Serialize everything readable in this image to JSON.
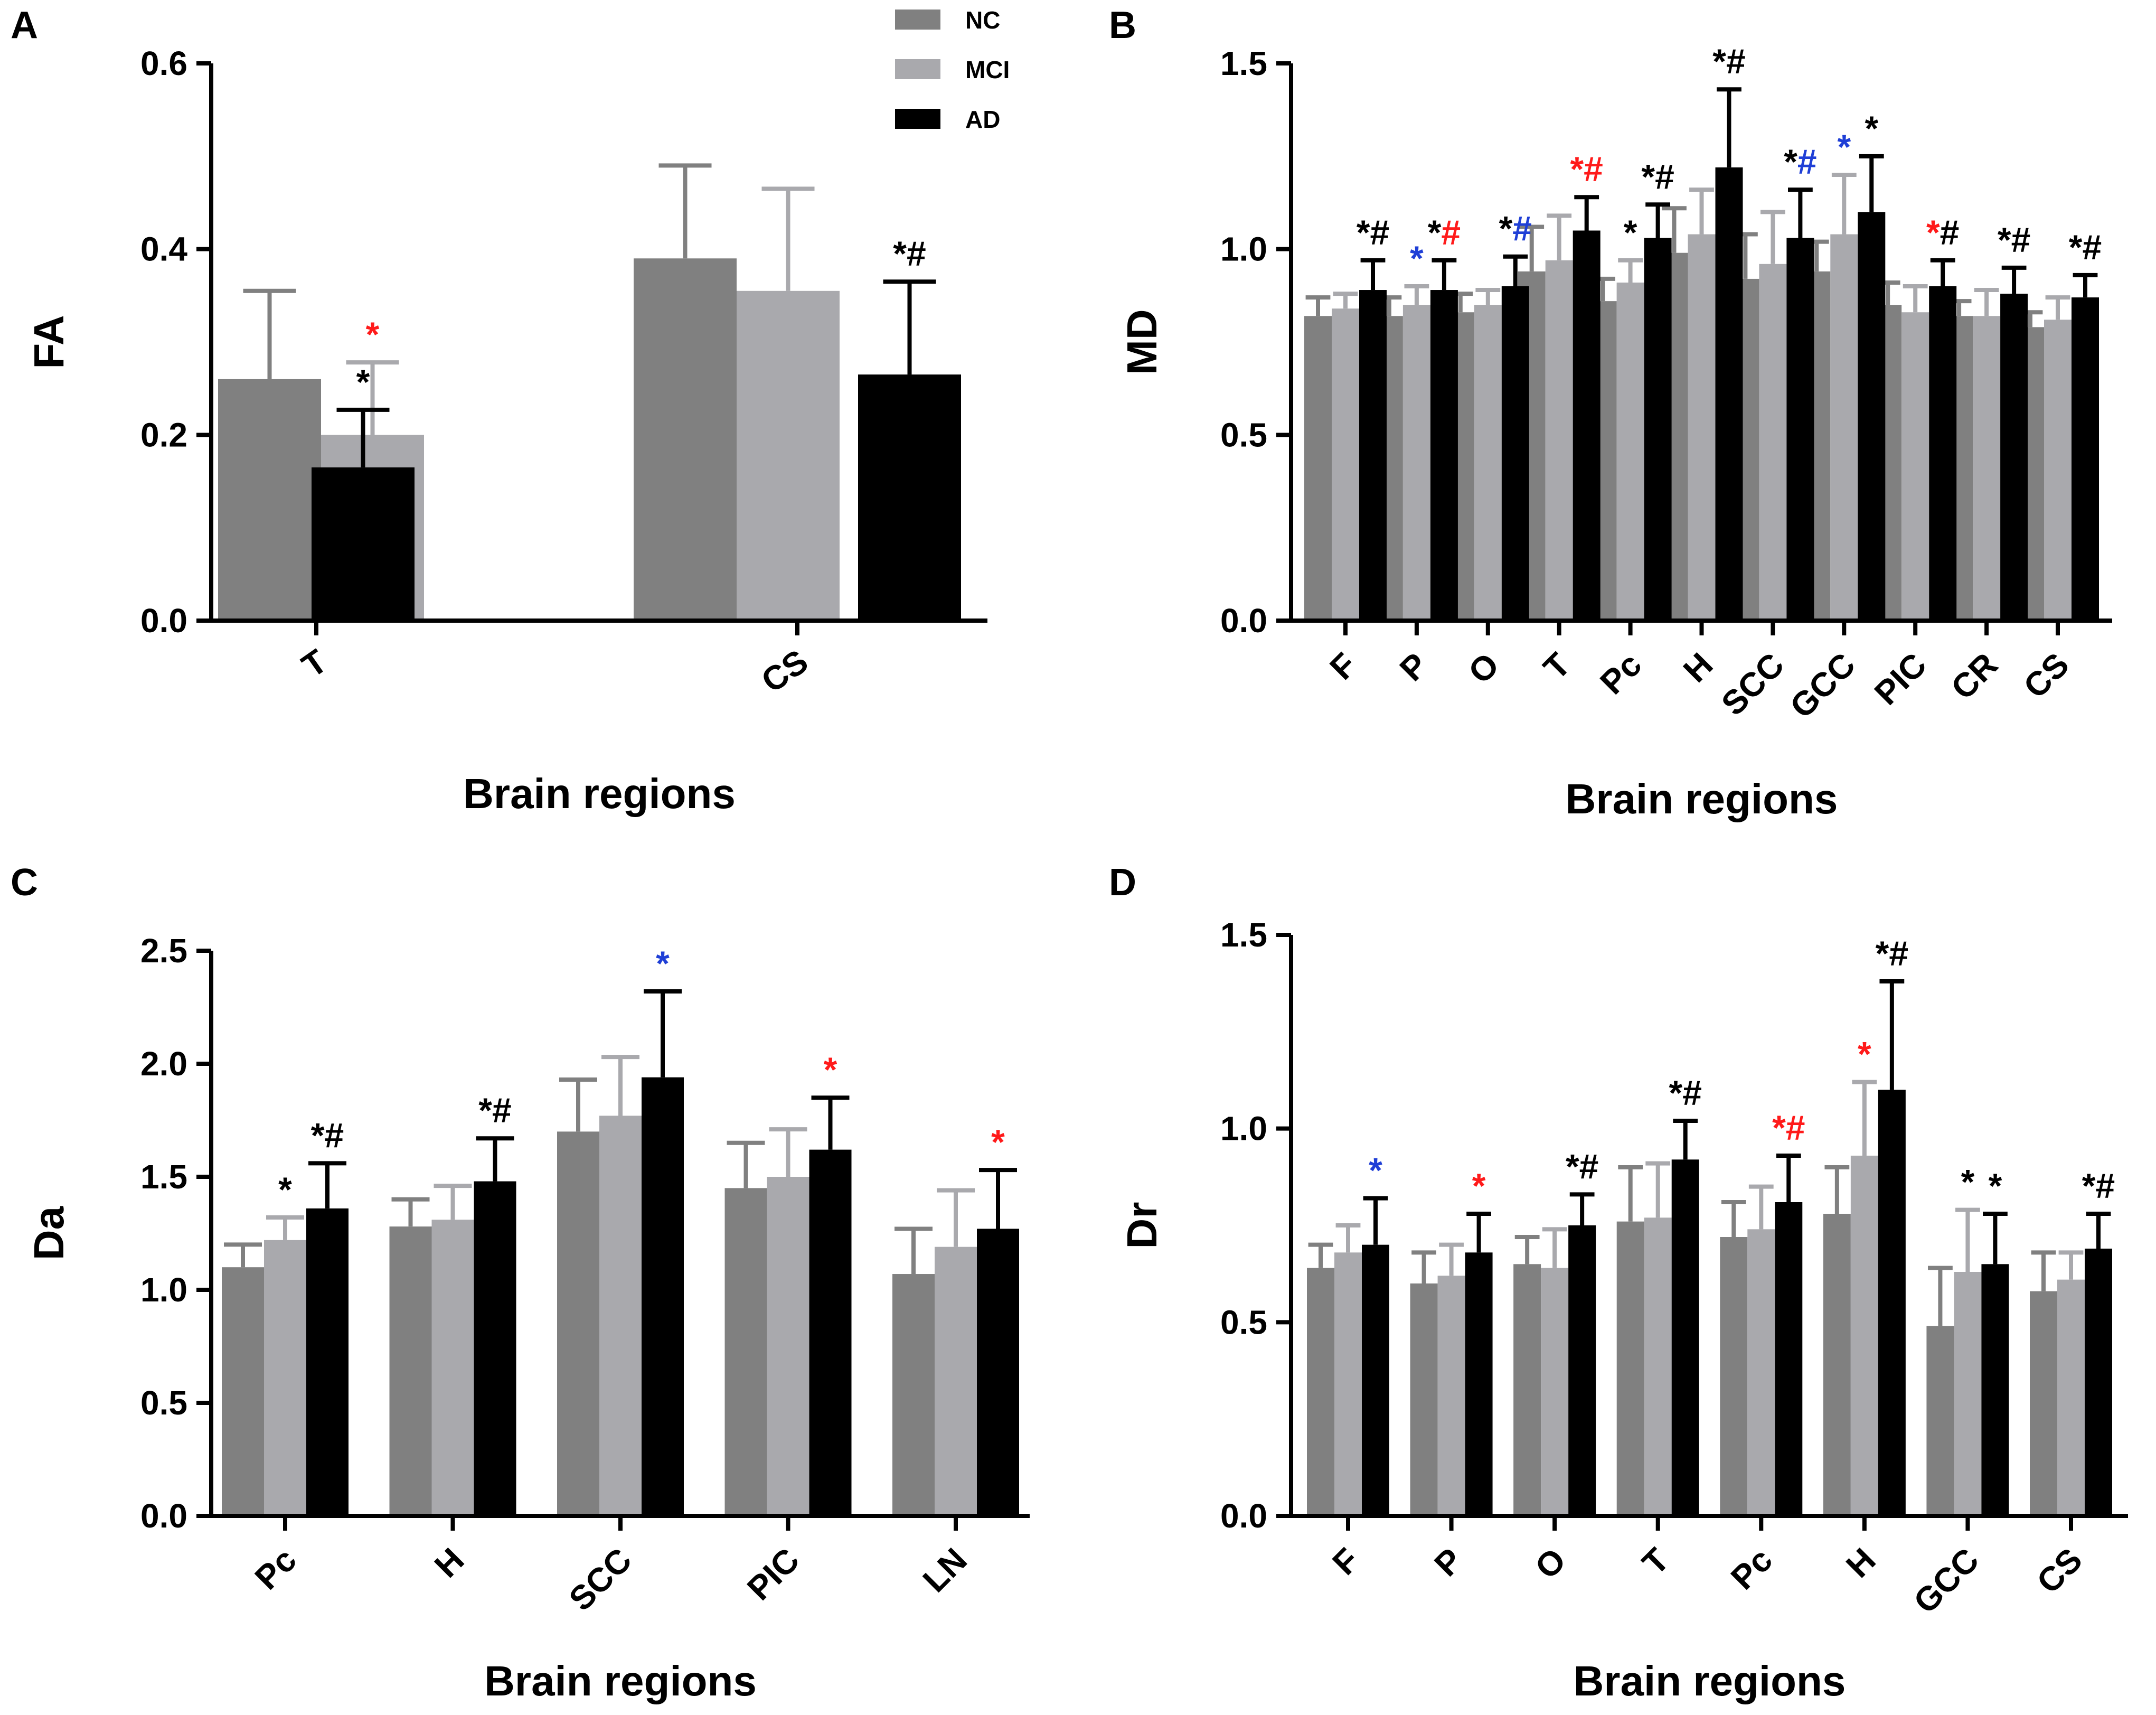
{
  "legend": [
    {
      "label": "NC",
      "color": "#808080"
    },
    {
      "label": "MCI",
      "color": "#a9a9ad"
    },
    {
      "label": "AD",
      "color": "#000000"
    }
  ],
  "sig_colors": {
    "k": "#000000",
    "r": "#ff1a1a",
    "b": "#1f3fd6"
  },
  "chart_data": [
    {
      "panel": "A",
      "type": "bar",
      "title": "",
      "xlabel": "Brain regions",
      "ylabel": "FA",
      "ylim": [
        0,
        0.6
      ],
      "yticks": [
        "0.0",
        "0.2",
        "0.4",
        "0.6"
      ],
      "categories": [
        "T",
        "CS"
      ],
      "series": [
        {
          "name": "NC",
          "values": [
            0.26,
            0.39
          ],
          "errors": [
            0.095,
            0.1
          ]
        },
        {
          "name": "MCI",
          "values": [
            0.2,
            0.355
          ],
          "errors": [
            0.078,
            0.11
          ]
        },
        {
          "name": "AD",
          "values": [
            0.165,
            0.265
          ],
          "errors": [
            0.062,
            0.1
          ]
        }
      ],
      "annotations": [
        {
          "category": 0,
          "series": 1,
          "marks": [
            {
              "t": "*",
              "c": "r"
            }
          ]
        },
        {
          "category": 0,
          "series": 2,
          "marks": [
            {
              "t": "*",
              "c": "k"
            }
          ]
        },
        {
          "category": 1,
          "series": 2,
          "marks": [
            {
              "t": "*#",
              "c": "k"
            }
          ]
        }
      ]
    },
    {
      "panel": "B",
      "type": "bar",
      "title": "",
      "xlabel": "Brain regions",
      "ylabel": "MD",
      "ylim": [
        0,
        1.5
      ],
      "yticks": [
        "0.0",
        "0.5",
        "1.0",
        "1.5"
      ],
      "categories": [
        "F",
        "P",
        "O",
        "T",
        "Pc",
        "H",
        "SCC",
        "GCC",
        "PIC",
        "CR",
        "CS"
      ],
      "series": [
        {
          "name": "NC",
          "values": [
            0.82,
            0.82,
            0.83,
            0.94,
            0.86,
            0.99,
            0.92,
            0.94,
            0.85,
            0.82,
            0.79
          ],
          "errors": [
            0.05,
            0.05,
            0.05,
            0.12,
            0.06,
            0.12,
            0.12,
            0.08,
            0.06,
            0.04,
            0.04
          ]
        },
        {
          "name": "MCI",
          "values": [
            0.84,
            0.85,
            0.85,
            0.97,
            0.91,
            1.04,
            0.96,
            1.04,
            0.83,
            0.82,
            0.81
          ],
          "errors": [
            0.04,
            0.05,
            0.04,
            0.12,
            0.06,
            0.12,
            0.14,
            0.16,
            0.07,
            0.07,
            0.06
          ]
        },
        {
          "name": "AD",
          "values": [
            0.89,
            0.89,
            0.9,
            1.05,
            1.03,
            1.22,
            1.03,
            1.1,
            0.9,
            0.88,
            0.87
          ],
          "errors": [
            0.08,
            0.08,
            0.08,
            0.09,
            0.09,
            0.21,
            0.13,
            0.15,
            0.07,
            0.07,
            0.06
          ]
        }
      ],
      "annotations": [
        {
          "category": 0,
          "series": 2,
          "marks": [
            {
              "t": "*#",
              "c": "k"
            }
          ]
        },
        {
          "category": 1,
          "series": 1,
          "marks": [
            {
              "t": "*",
              "c": "b"
            }
          ]
        },
        {
          "category": 1,
          "series": 2,
          "marks": [
            {
              "t": "*",
              "c": "k"
            },
            {
              "t": "#",
              "c": "r"
            }
          ]
        },
        {
          "category": 2,
          "series": 2,
          "marks": [
            {
              "t": "*",
              "c": "k"
            },
            {
              "t": "#",
              "c": "b"
            }
          ]
        },
        {
          "category": 3,
          "series": 2,
          "marks": [
            {
              "t": "*#",
              "c": "r"
            }
          ]
        },
        {
          "category": 4,
          "series": 1,
          "marks": [
            {
              "t": "*",
              "c": "k"
            }
          ]
        },
        {
          "category": 4,
          "series": 2,
          "marks": [
            {
              "t": "*#",
              "c": "k"
            }
          ]
        },
        {
          "category": 5,
          "series": 2,
          "marks": [
            {
              "t": "*#",
              "c": "k"
            }
          ]
        },
        {
          "category": 6,
          "series": 2,
          "marks": [
            {
              "t": "*",
              "c": "k"
            },
            {
              "t": "#",
              "c": "b"
            }
          ]
        },
        {
          "category": 7,
          "series": 1,
          "marks": [
            {
              "t": "*",
              "c": "b"
            }
          ]
        },
        {
          "category": 7,
          "series": 2,
          "marks": [
            {
              "t": "*",
              "c": "k"
            }
          ]
        },
        {
          "category": 8,
          "series": 2,
          "marks": [
            {
              "t": "*",
              "c": "r"
            },
            {
              "t": "#",
              "c": "k"
            }
          ]
        },
        {
          "category": 9,
          "series": 2,
          "marks": [
            {
              "t": "*#",
              "c": "k"
            }
          ]
        },
        {
          "category": 10,
          "series": 2,
          "marks": [
            {
              "t": "*#",
              "c": "k"
            }
          ]
        }
      ]
    },
    {
      "panel": "C",
      "type": "bar",
      "title": "",
      "xlabel": "Brain regions",
      "ylabel": "Da",
      "ylim": [
        0,
        2.5
      ],
      "yticks": [
        "0.0",
        "0.5",
        "1.0",
        "1.5",
        "2.0",
        "2.5"
      ],
      "categories": [
        "Pc",
        "H",
        "SCC",
        "PIC",
        "LN"
      ],
      "series": [
        {
          "name": "NC",
          "values": [
            1.1,
            1.28,
            1.7,
            1.45,
            1.07
          ],
          "errors": [
            0.1,
            0.12,
            0.23,
            0.2,
            0.2
          ]
        },
        {
          "name": "MCI",
          "values": [
            1.22,
            1.31,
            1.77,
            1.5,
            1.19
          ],
          "errors": [
            0.1,
            0.15,
            0.26,
            0.21,
            0.25
          ]
        },
        {
          "name": "AD",
          "values": [
            1.36,
            1.48,
            1.94,
            1.62,
            1.27
          ],
          "errors": [
            0.2,
            0.19,
            0.38,
            0.23,
            0.26
          ]
        }
      ],
      "annotations": [
        {
          "category": 0,
          "series": 1,
          "marks": [
            {
              "t": "*",
              "c": "k"
            }
          ]
        },
        {
          "category": 0,
          "series": 2,
          "marks": [
            {
              "t": "*#",
              "c": "k"
            }
          ]
        },
        {
          "category": 1,
          "series": 2,
          "marks": [
            {
              "t": "*#",
              "c": "k"
            }
          ]
        },
        {
          "category": 2,
          "series": 2,
          "marks": [
            {
              "t": "*",
              "c": "b"
            }
          ]
        },
        {
          "category": 3,
          "series": 2,
          "marks": [
            {
              "t": "*",
              "c": "r"
            }
          ]
        },
        {
          "category": 4,
          "series": 2,
          "marks": [
            {
              "t": "*",
              "c": "r"
            }
          ]
        }
      ]
    },
    {
      "panel": "D",
      "type": "bar",
      "title": "",
      "xlabel": "Brain regions",
      "ylabel": "Dr",
      "ylim": [
        0,
        1.5
      ],
      "yticks": [
        "0.0",
        "0.5",
        "1.0",
        "1.5"
      ],
      "categories": [
        "F",
        "P",
        "O",
        "T",
        "Pc",
        "H",
        "GCC",
        "CS"
      ],
      "series": [
        {
          "name": "NC",
          "values": [
            0.64,
            0.6,
            0.65,
            0.76,
            0.72,
            0.78,
            0.49,
            0.58
          ],
          "errors": [
            0.06,
            0.08,
            0.07,
            0.14,
            0.09,
            0.12,
            0.15,
            0.1
          ]
        },
        {
          "name": "MCI",
          "values": [
            0.68,
            0.62,
            0.64,
            0.77,
            0.74,
            0.93,
            0.63,
            0.61
          ],
          "errors": [
            0.07,
            0.08,
            0.1,
            0.14,
            0.11,
            0.19,
            0.16,
            0.07
          ]
        },
        {
          "name": "AD",
          "values": [
            0.7,
            0.68,
            0.75,
            0.92,
            0.81,
            1.1,
            0.65,
            0.69
          ],
          "errors": [
            0.12,
            0.1,
            0.08,
            0.1,
            0.12,
            0.28,
            0.13,
            0.09
          ]
        }
      ],
      "annotations": [
        {
          "category": 0,
          "series": 2,
          "marks": [
            {
              "t": "*",
              "c": "b"
            }
          ]
        },
        {
          "category": 1,
          "series": 2,
          "marks": [
            {
              "t": "*",
              "c": "r"
            }
          ]
        },
        {
          "category": 2,
          "series": 2,
          "marks": [
            {
              "t": "*#",
              "c": "k"
            }
          ]
        },
        {
          "category": 3,
          "series": 2,
          "marks": [
            {
              "t": "*#",
              "c": "k"
            }
          ]
        },
        {
          "category": 4,
          "series": 2,
          "marks": [
            {
              "t": "*#",
              "c": "r"
            }
          ]
        },
        {
          "category": 5,
          "series": 1,
          "marks": [
            {
              "t": "*",
              "c": "r"
            }
          ]
        },
        {
          "category": 5,
          "series": 2,
          "marks": [
            {
              "t": "*#",
              "c": "k"
            }
          ]
        },
        {
          "category": 6,
          "series": 1,
          "marks": [
            {
              "t": "*",
              "c": "k"
            }
          ]
        },
        {
          "category": 6,
          "series": 2,
          "marks": [
            {
              "t": "*",
              "c": "k"
            }
          ]
        },
        {
          "category": 7,
          "series": 2,
          "marks": [
            {
              "t": "*#",
              "c": "k"
            }
          ]
        }
      ]
    }
  ]
}
